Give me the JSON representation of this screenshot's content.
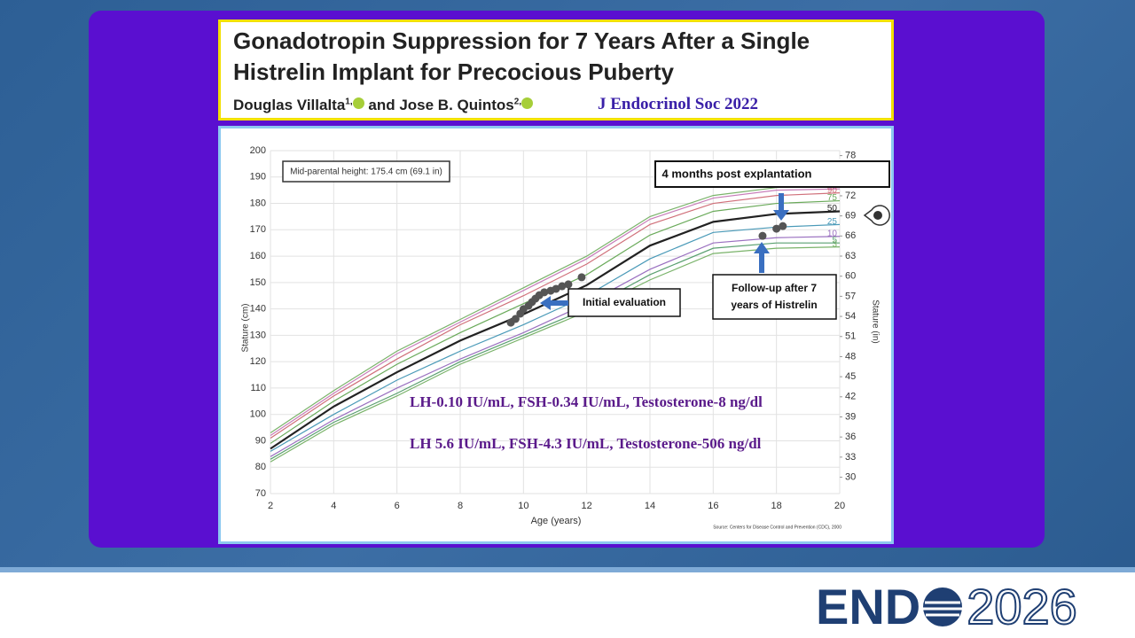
{
  "header": {
    "title": "Gonadotropin Suppression for 7 Years After a Single Histrelin Implant for Precocious Puberty",
    "authors": {
      "first": "Douglas Villalta",
      "first_sup": "1,",
      "joiner": "and",
      "second": "Jose B. Quintos",
      "second_sup": "2,"
    },
    "journal": "J Endocrinol Soc 2022"
  },
  "chart_data": {
    "type": "line",
    "x_label": "Age (years)",
    "y_label": "Stature (cm)",
    "y2_label": "Stature (in)",
    "x": [
      2,
      4,
      6,
      8,
      10,
      12,
      14,
      16,
      18,
      20
    ],
    "series": [
      {
        "name": "97",
        "color": "#7ab36a",
        "values": [
          93,
          109,
          124,
          136,
          148,
          160,
          175,
          183,
          186,
          187
        ]
      },
      {
        "name": "95",
        "color": "#c77db8",
        "values": [
          92,
          108,
          123,
          135,
          147,
          159,
          174,
          182,
          185,
          185.5
        ]
      },
      {
        "name": "90",
        "color": "#d0707a",
        "values": [
          91,
          107,
          121,
          134,
          145,
          157,
          172,
          180,
          183,
          184
        ]
      },
      {
        "name": "75",
        "color": "#6aaa5a",
        "values": [
          89,
          105,
          119,
          131,
          142,
          153,
          168,
          177,
          180,
          181
        ]
      },
      {
        "name": "50",
        "color": "#222222",
        "values": [
          87,
          103,
          116,
          128,
          138,
          149,
          164,
          173,
          176,
          177
        ]
      },
      {
        "name": "25",
        "color": "#4a9ab8",
        "values": [
          86,
          100,
          113,
          124,
          134,
          145,
          159,
          169,
          171,
          172
        ]
      },
      {
        "name": "10",
        "color": "#9a70c0",
        "values": [
          84,
          98,
          110,
          121,
          131,
          142,
          155,
          165,
          167,
          167.5
        ]
      },
      {
        "name": "5",
        "color": "#5aa070",
        "values": [
          83,
          97,
          108,
          120,
          130,
          140,
          153,
          163,
          165,
          165
        ]
      },
      {
        "name": "3",
        "color": "#7ab36a",
        "values": [
          82,
          96,
          107,
          119,
          129,
          139,
          151,
          161,
          163,
          163.5
        ]
      }
    ],
    "points": {
      "color": "#555555",
      "x": [
        9.6,
        9.75,
        9.9,
        10.0,
        10.16,
        10.27,
        10.38,
        10.5,
        10.66,
        10.86,
        11.03,
        11.22,
        11.42,
        11.84,
        17.56,
        18.0,
        18.2
      ],
      "values": [
        134.8,
        136.2,
        138.2,
        139.9,
        141.2,
        142.6,
        143.9,
        145.2,
        146.3,
        146.9,
        147.6,
        148.6,
        149.3,
        152.0,
        167.7,
        170.4,
        171.4
      ]
    },
    "xlim": [
      2,
      20
    ],
    "xticks": [
      2,
      4,
      6,
      8,
      10,
      12,
      14,
      16,
      18,
      20
    ],
    "ylim": [
      70,
      200
    ],
    "yticks": [
      70,
      80,
      90,
      100,
      110,
      120,
      130,
      140,
      150,
      160,
      170,
      180,
      190,
      200
    ],
    "y2lim": [
      27.56,
      78.74
    ],
    "y2ticks": [
      30,
      33,
      36,
      39,
      42,
      45,
      48,
      51,
      54,
      57,
      60,
      63,
      66,
      69,
      72,
      75,
      78
    ],
    "grid": true,
    "annotations": {
      "mid_parental": "Mid-parental height: 175.4 cm (69.1 in)",
      "post_explant": "4 months post explantation",
      "initial": "Initial evaluation",
      "follow_up": [
        "Follow-up after 7",
        "years of Histrelin"
      ],
      "labs_1": "LH-0.10 IU/mL, FSH-0.34 IU/mL, Testosterone-8 ng/dl",
      "labs_2": "LH 5.6 IU/mL, FSH-4.3 IU/mL, Testosterone-506 ng/dl",
      "source": "Source: Centers for Disease Control and Prevention (CDC), 2000"
    }
  },
  "footer": {
    "logo_left": "END",
    "logo_right": "2026"
  }
}
